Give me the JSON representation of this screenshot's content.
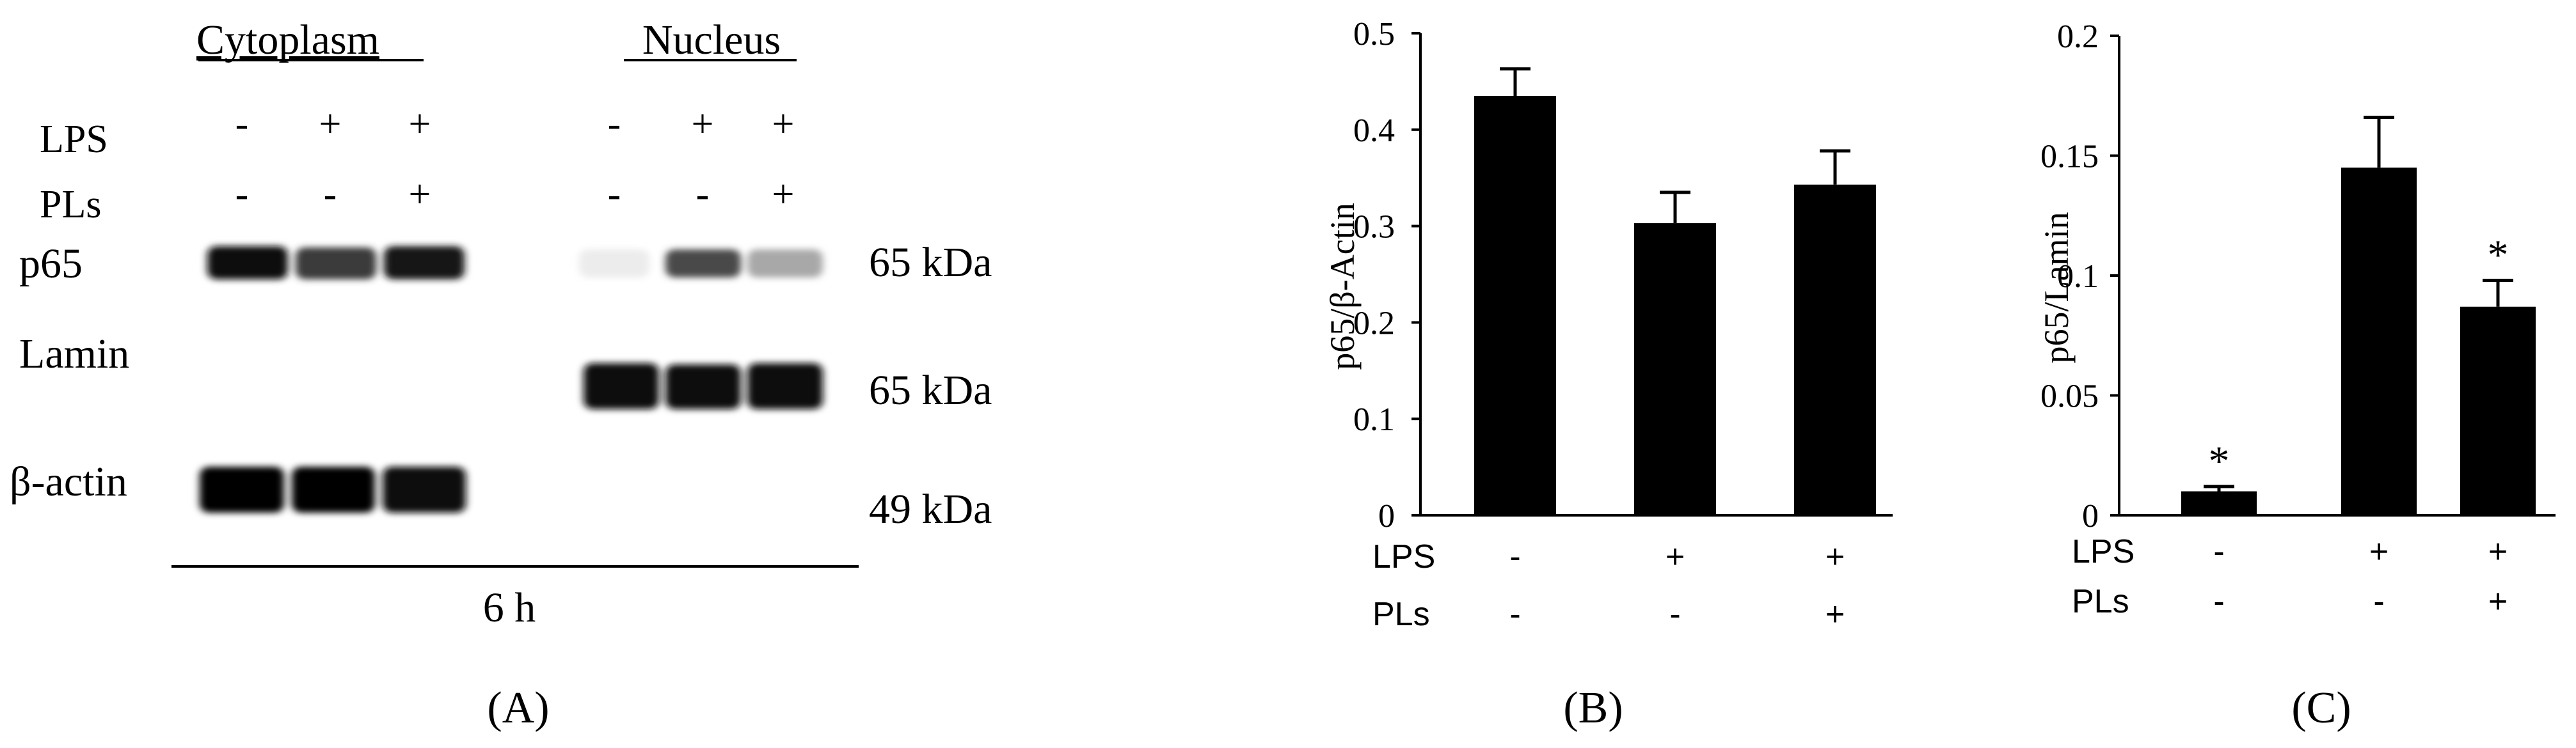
{
  "panel_a": {
    "header_cytoplasm": "Cytoplasm",
    "header_nucleus": "Nucleus",
    "row_lps": "LPS",
    "row_pls": "PLs",
    "row_p65": "p65",
    "row_lamin": "Lamin",
    "row_actin": "β-actin",
    "lps_cyto": [
      "-",
      "+",
      "+"
    ],
    "pls_cyto": [
      "-",
      "-",
      "+"
    ],
    "lps_nuc": [
      "-",
      "+",
      "+"
    ],
    "pls_nuc": [
      "-",
      "-",
      "+"
    ],
    "kda_p65": "65 kDa",
    "kda_lamin": "65 kDa",
    "kda_actin": "49 kDa",
    "time": "6 h",
    "label": "(A)",
    "band_colors": {
      "p65_cyto": [
        "#111111",
        "#3a3a3a",
        "#141414"
      ],
      "p65_nuc": [
        "#ececec",
        "#4a4a4a",
        "#a8a8a8"
      ],
      "lamin_nuc": [
        "#080808",
        "#0a0a0a",
        "#0a0a0a"
      ],
      "actin_cyto": [
        "#060606",
        "#060606",
        "#080808"
      ]
    }
  },
  "chart_data": [
    {
      "type": "bar",
      "panel_label": "(B)",
      "ylabel": "p65/β-Actin",
      "ylim": [
        0,
        0.5
      ],
      "yticks": [
        "0",
        "0.1",
        "0.2",
        "0.3",
        "0.4",
        "0.5"
      ],
      "ytick_values": [
        0,
        0.1,
        0.2,
        0.3,
        0.4,
        0.5
      ],
      "categories": [
        "-/-",
        "+/-",
        "+/+"
      ],
      "values": [
        0.435,
        0.303,
        0.343
      ],
      "errors": [
        0.028,
        0.032,
        0.035
      ],
      "significance": [
        "",
        "",
        ""
      ],
      "row_labels": [
        "LPS",
        "PLs"
      ],
      "lps": [
        "-",
        "+",
        "+"
      ],
      "pls": [
        "-",
        "-",
        "+"
      ]
    },
    {
      "type": "bar",
      "panel_label": "(C)",
      "ylabel": "p65/Lamin",
      "ylim": [
        0,
        0.2
      ],
      "yticks": [
        "0",
        "0.05",
        "0.1",
        "0.15",
        "0.2"
      ],
      "ytick_values": [
        0,
        0.05,
        0.1,
        0.15,
        0.2
      ],
      "categories": [
        "-/-",
        "+/-",
        "+/+"
      ],
      "values": [
        0.01,
        0.145,
        0.087
      ],
      "errors": [
        0.002,
        0.021,
        0.011
      ],
      "significance": [
        "*",
        "",
        "*"
      ],
      "row_labels": [
        "LPS",
        "PLs"
      ],
      "lps": [
        "-",
        "+",
        "+"
      ],
      "pls": [
        "-",
        "-",
        "+"
      ]
    }
  ]
}
